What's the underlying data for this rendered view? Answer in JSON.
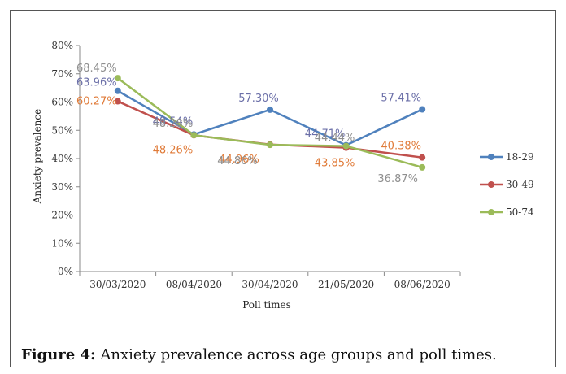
{
  "figure": {
    "caption_label": "Figure 4:",
    "caption_text": " Anxiety prevalence across age groups and poll times."
  },
  "chart_data": {
    "type": "line",
    "xlabel": "Poll times",
    "ylabel": "Anxiety prevalence",
    "ylim": [
      0,
      80
    ],
    "yticks": [
      "0%",
      "10%",
      "20%",
      "30%",
      "40%",
      "50%",
      "60%",
      "70%",
      "80%"
    ],
    "categories": [
      "30/03/2020",
      "08/04/2020",
      "30/04/2020",
      "21/05/2020",
      "08/06/2020"
    ],
    "legend_position": "right",
    "grid": false,
    "series": [
      {
        "name": "18-29",
        "color": "#4f81bd",
        "values": [
          63.96,
          48.54,
          57.3,
          44.71,
          57.41
        ],
        "labels": [
          "63.96%",
          "48.54%",
          "57.30%",
          "44.71%",
          "57.41%"
        ],
        "label_color": "#6b6fa8"
      },
      {
        "name": "30-49",
        "color": "#c0504d",
        "values": [
          60.27,
          48.26,
          44.96,
          43.85,
          40.38
        ],
        "labels": [
          "60.27%",
          "48.26%",
          "44.96%",
          "43.85%",
          "40.38%"
        ],
        "label_color": "#e07b39"
      },
      {
        "name": "50-74",
        "color": "#9bbb59",
        "values": [
          68.45,
          48.28,
          44.86,
          44.44,
          36.87
        ],
        "labels": [
          "68.45%",
          "48.28%",
          "44.86%",
          "44.44%",
          "36.87%"
        ],
        "label_color": "#8f8f8f"
      }
    ]
  }
}
